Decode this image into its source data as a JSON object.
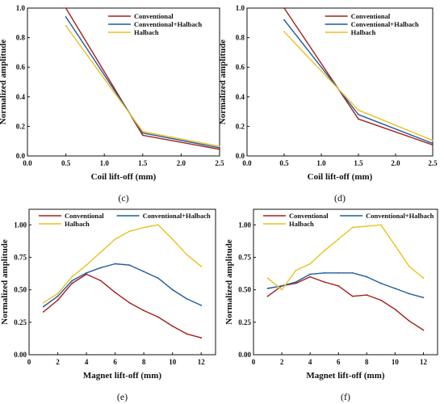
{
  "colors": {
    "Conventional": "#a3201a",
    "Conventional+Halbach": "#1f5aa0",
    "Halbach": "#e8c21e",
    "axis": "#111111"
  },
  "chart_data": [
    {
      "panel_label": "(c)",
      "type": "line",
      "title": "",
      "xlabel": "Coil lift-off (mm)",
      "ylabel": "Normalized amplitude",
      "xlim": [
        0.0,
        2.5
      ],
      "ylim": [
        0.0,
        1.0
      ],
      "xticks": [
        "0.0",
        "0.5",
        "1.0",
        "1.5",
        "2.0",
        "2.5"
      ],
      "yticks": [
        "0.0",
        "0.2",
        "0.4",
        "0.6",
        "0.8",
        "1.0"
      ],
      "grid": false,
      "legend_position": "top-right",
      "x": [
        0.5,
        1.5,
        2.5
      ],
      "series": [
        {
          "name": "Conventional",
          "values": [
            1.0,
            0.14,
            0.045
          ]
        },
        {
          "name": "Conventional+Halbach",
          "values": [
            0.94,
            0.155,
            0.055
          ]
        },
        {
          "name": "Halbach",
          "values": [
            0.88,
            0.165,
            0.065
          ]
        }
      ]
    },
    {
      "panel_label": "(d)",
      "type": "line",
      "title": "",
      "xlabel": "Coil lift-off (mm)",
      "ylabel": "Normalized amplitude",
      "xlim": [
        0.0,
        2.5
      ],
      "ylim": [
        0.0,
        1.0
      ],
      "xticks": [
        "0.0",
        "0.5",
        "1.0",
        "1.5",
        "2.0",
        "2.5"
      ],
      "yticks": [
        "0.0",
        "0.2",
        "0.4",
        "0.6",
        "0.8",
        "1.0"
      ],
      "grid": false,
      "legend_position": "top-right",
      "x": [
        0.5,
        1.5,
        2.5
      ],
      "series": [
        {
          "name": "Conventional",
          "values": [
            1.0,
            0.25,
            0.075
          ]
        },
        {
          "name": "Conventional+Halbach",
          "values": [
            0.92,
            0.28,
            0.085
          ]
        },
        {
          "name": "Halbach",
          "values": [
            0.84,
            0.31,
            0.105
          ]
        }
      ]
    },
    {
      "panel_label": "(e)",
      "type": "line",
      "title": "",
      "xlabel": "Magnet lift-off (mm)",
      "ylabel": "Normalized amplitude",
      "xlim": [
        0,
        13
      ],
      "ylim": [
        0.0,
        1.12
      ],
      "xticks": [
        "0",
        "2",
        "4",
        "6",
        "8",
        "10",
        "12"
      ],
      "yticks": [
        "0.00",
        "0.25",
        "0.50",
        "0.75",
        "1.00"
      ],
      "grid": false,
      "legend_position": "top",
      "x": [
        1,
        2,
        3,
        4,
        5,
        6,
        7,
        8,
        9,
        10,
        11,
        12
      ],
      "series": [
        {
          "name": "Conventional",
          "values": [
            0.33,
            0.42,
            0.55,
            0.62,
            0.57,
            0.48,
            0.4,
            0.34,
            0.29,
            0.22,
            0.16,
            0.13
          ]
        },
        {
          "name": "Conventional+Halbach",
          "values": [
            0.37,
            0.45,
            0.57,
            0.63,
            0.67,
            0.7,
            0.69,
            0.64,
            0.59,
            0.5,
            0.43,
            0.38
          ]
        },
        {
          "name": "Halbach",
          "values": [
            0.4,
            0.47,
            0.6,
            0.69,
            0.79,
            0.89,
            0.95,
            0.98,
            1.0,
            0.89,
            0.77,
            0.68
          ]
        }
      ]
    },
    {
      "panel_label": "(f)",
      "type": "line",
      "title": "",
      "xlabel": "Magnet lift-off (mm)",
      "ylabel": "Normalized amplitude",
      "xlim": [
        0,
        13
      ],
      "ylim": [
        0.0,
        1.12
      ],
      "xticks": [
        "0",
        "2",
        "4",
        "6",
        "8",
        "10",
        "12"
      ],
      "yticks": [
        "0.00",
        "0.25",
        "0.50",
        "0.75",
        "1.00"
      ],
      "grid": false,
      "legend_position": "top",
      "x": [
        1,
        2,
        3,
        4,
        5,
        6,
        7,
        8,
        9,
        10,
        11,
        12
      ],
      "series": [
        {
          "name": "Conventional",
          "values": [
            0.45,
            0.53,
            0.55,
            0.6,
            0.56,
            0.53,
            0.45,
            0.46,
            0.42,
            0.35,
            0.26,
            0.19
          ]
        },
        {
          "name": "Conventional+Halbach",
          "values": [
            0.51,
            0.53,
            0.56,
            0.62,
            0.63,
            0.63,
            0.63,
            0.6,
            0.55,
            0.51,
            0.47,
            0.44
          ]
        },
        {
          "name": "Halbach",
          "values": [
            0.59,
            0.5,
            0.65,
            0.7,
            0.8,
            0.89,
            0.98,
            0.99,
            1.0,
            0.84,
            0.68,
            0.59
          ]
        }
      ]
    }
  ]
}
